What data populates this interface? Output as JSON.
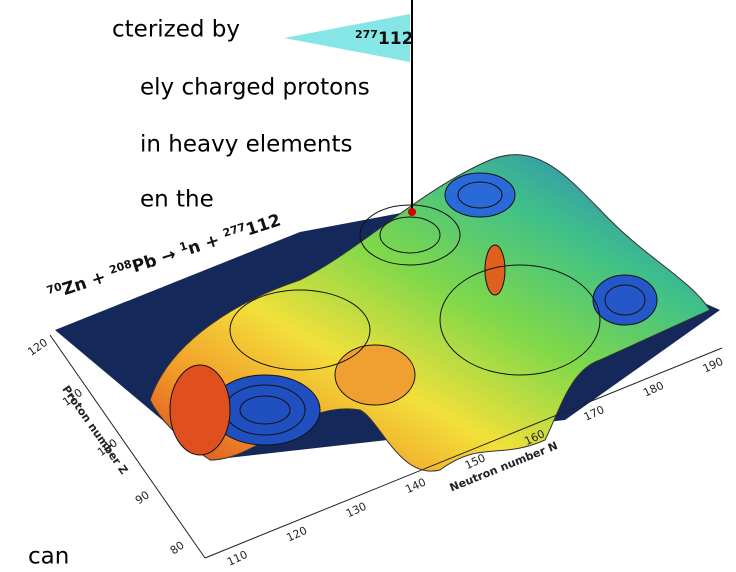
{
  "text_fragments": [
    "cterized by",
    "ely charged protons",
    "in heavy elements",
    "en the",
    "can"
  ],
  "flag": {
    "mass": "277",
    "element": "112"
  },
  "reaction": [
    {
      "sup": "70",
      "base": "Zn + "
    },
    {
      "sup": "208",
      "base": "Pb → "
    },
    {
      "sup": "1",
      "base": "n + "
    },
    {
      "sup": "277",
      "base": "112"
    }
  ],
  "proton_axis": {
    "title": "Proton number Z",
    "ticks": [
      80,
      90,
      100,
      110,
      120
    ]
  },
  "neutron_axis": {
    "title": "Neutron number N",
    "ticks": [
      110,
      120,
      130,
      140,
      150,
      160,
      170,
      180,
      190
    ]
  }
}
